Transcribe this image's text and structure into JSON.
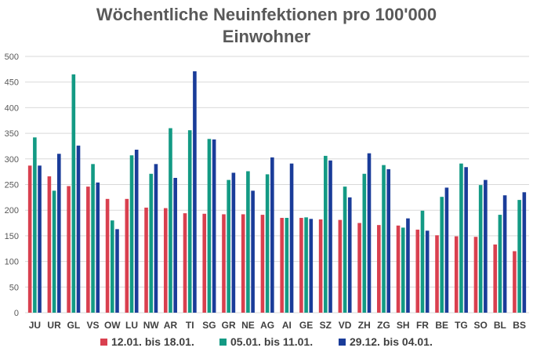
{
  "chart_data": {
    "type": "bar",
    "title_line1": "Wöchentliche Neuinfektionen pro 100'000",
    "title_line2": "Einwohner",
    "xlabel": "",
    "ylabel": "",
    "ylim": [
      0,
      500
    ],
    "yticks": [
      0,
      50,
      100,
      150,
      200,
      250,
      300,
      350,
      400,
      450,
      500
    ],
    "grid": true,
    "legend_position": "bottom",
    "categories": [
      "JU",
      "UR",
      "GL",
      "VS",
      "OW",
      "LU",
      "NW",
      "AR",
      "TI",
      "SG",
      "GR",
      "NE",
      "AG",
      "AI",
      "GE",
      "SZ",
      "VD",
      "ZH",
      "ZG",
      "SH",
      "FR",
      "BE",
      "TG",
      "SO",
      "BL",
      "BS"
    ],
    "series": [
      {
        "name": "12.01. bis 18.01.",
        "color": "#d9404f",
        "values": [
          287,
          266,
          247,
          246,
          222,
          222,
          205,
          204,
          194,
          193,
          192,
          192,
          191,
          185,
          185,
          182,
          181,
          175,
          171,
          170,
          162,
          151,
          149,
          148,
          133,
          120
        ]
      },
      {
        "name": "05.01. bis 11.01.",
        "color": "#139a84",
        "values": [
          342,
          238,
          465,
          290,
          180,
          307,
          271,
          360,
          356,
          339,
          259,
          276,
          270,
          185,
          186,
          306,
          246,
          271,
          288,
          166,
          199,
          226,
          291,
          249,
          191,
          220
        ]
      },
      {
        "name": "29.12. bis 04.01.",
        "color": "#1a3c99",
        "values": [
          287,
          310,
          326,
          254,
          163,
          318,
          290,
          263,
          471,
          338,
          273,
          238,
          303,
          291,
          183,
          297,
          225,
          311,
          280,
          184,
          160,
          244,
          284,
          259,
          229,
          235
        ]
      }
    ]
  }
}
